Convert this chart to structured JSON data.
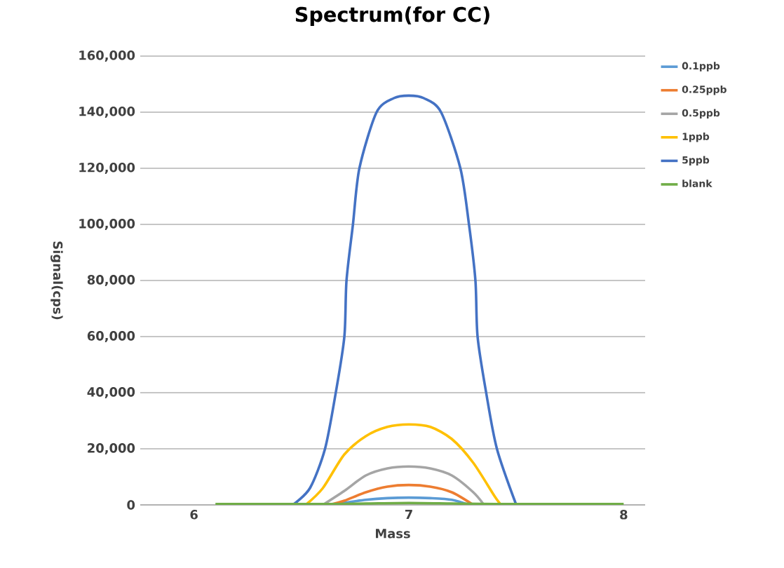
{
  "chart_data": {
    "type": "line",
    "title": "Spectrum(for CC)",
    "xlabel": "Mass",
    "ylabel": "Signal(cps)",
    "xlim": [
      5.75,
      8.1
    ],
    "xticks": [
      6,
      7,
      8
    ],
    "ylim": [
      0,
      160000
    ],
    "yticks": [
      0,
      {
        "value": 20000,
        "label": "20,000"
      },
      {
        "value": 40000,
        "label": "40,000"
      },
      {
        "value": 60000,
        "label": "60,000"
      },
      {
        "value": 80000,
        "label": "80,000"
      },
      {
        "value": 100000,
        "label": "100,000"
      },
      {
        "value": 120000,
        "label": "120,000"
      },
      {
        "value": 140000,
        "label": "140,000"
      },
      {
        "value": 160000,
        "label": "160,000"
      }
    ],
    "grid": "y",
    "legend": "right",
    "marker": "none",
    "line_style": "solid",
    "series": [
      {
        "name": "0.1ppb",
        "color": "#5b9bd5",
        "x": [
          6.62,
          6.7,
          6.8,
          6.9,
          7.0,
          7.1,
          7.2,
          7.28
        ],
        "values": [
          0,
          800,
          1800,
          2400,
          2600,
          2400,
          1800,
          0
        ]
      },
      {
        "name": "0.25ppb",
        "color": "#ed7d31",
        "x": [
          6.63,
          6.7,
          6.8,
          6.9,
          7.0,
          7.1,
          7.2,
          7.3
        ],
        "values": [
          0,
          1500,
          4500,
          6500,
          7100,
          6500,
          4500,
          0
        ]
      },
      {
        "name": "0.5ppb",
        "color": "#a5a5a5",
        "x": [
          6.6,
          6.7,
          6.8,
          6.9,
          7.0,
          7.1,
          7.2,
          7.3,
          7.35
        ],
        "values": [
          0,
          5000,
          10500,
          13000,
          13700,
          13000,
          10500,
          4500,
          0
        ]
      },
      {
        "name": "1ppb",
        "color": "#ffc000",
        "x": [
          6.52,
          6.6,
          6.7,
          6.8,
          6.9,
          7.0,
          7.1,
          7.2,
          7.3,
          7.4,
          7.43
        ],
        "values": [
          0,
          6000,
          18000,
          24500,
          27800,
          28700,
          27800,
          23500,
          15000,
          3000,
          0
        ]
      },
      {
        "name": "5ppb",
        "color": "#4472c4",
        "x": [
          6.46,
          6.54,
          6.61,
          6.66,
          6.7,
          6.71,
          6.74,
          6.77,
          6.85,
          6.93,
          7.0,
          7.07,
          7.15,
          7.24,
          7.28,
          7.31,
          7.32,
          7.36,
          7.41,
          7.5
        ],
        "values": [
          0,
          6000,
          20000,
          40000,
          60000,
          80000,
          100000,
          120000,
          140000,
          145000,
          145900,
          145000,
          140000,
          120000,
          100000,
          80000,
          60000,
          40000,
          20000,
          0
        ]
      },
      {
        "name": "blank",
        "color": "#70ad47",
        "x": [
          6.1,
          6.6,
          6.8,
          7.0,
          7.2,
          7.4,
          8.0
        ],
        "values": [
          300,
          300,
          500,
          700,
          500,
          300,
          300
        ]
      }
    ]
  }
}
